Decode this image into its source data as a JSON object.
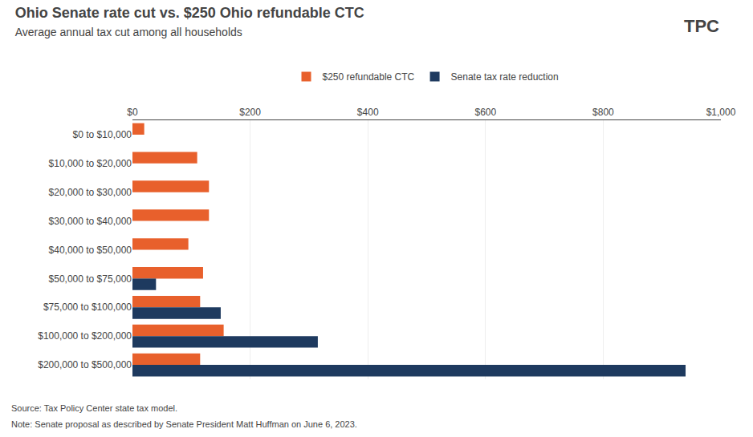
{
  "chart_data": {
    "type": "bar",
    "orientation": "horizontal",
    "title": "Ohio Senate rate cut vs. $250 Ohio refundable CTC",
    "subtitle": "Average annual tax cut among all households",
    "categories": [
      "$0 to $10,000",
      "$10,000 to $20,000",
      "$20,000 to $30,000",
      "$30,000 to $40,000",
      "$40,000 to $50,000",
      "$50,000 to $75,000",
      "$75,000 to $100,000",
      "$100,000 to $200,000",
      "$200,000 to $500,000"
    ],
    "series": [
      {
        "name": "$250 refundable CTC",
        "color": "#E8602C",
        "values": [
          20,
          110,
          130,
          130,
          95,
          120,
          115,
          155,
          115
        ]
      },
      {
        "name": "Senate tax rate reduction",
        "color": "#1E3A5F",
        "values": [
          0,
          0,
          0,
          0,
          0,
          40,
          150,
          315,
          940
        ]
      }
    ],
    "xlim": [
      0,
      1000
    ],
    "xticks": [
      {
        "value": 0,
        "label": "$0"
      },
      {
        "value": 200,
        "label": "$200"
      },
      {
        "value": 400,
        "label": "$400"
      },
      {
        "value": 600,
        "label": "$600"
      },
      {
        "value": 800,
        "label": "$800"
      },
      {
        "value": 1000,
        "label": "$1,000"
      }
    ],
    "grid": true,
    "legend": "top",
    "annotations": [
      "Source: Tax Policy Center state tax model.",
      "Note: Senate proposal as described by Senate President Matt Huffman on June 6, 2023.",
      "TPC"
    ]
  }
}
